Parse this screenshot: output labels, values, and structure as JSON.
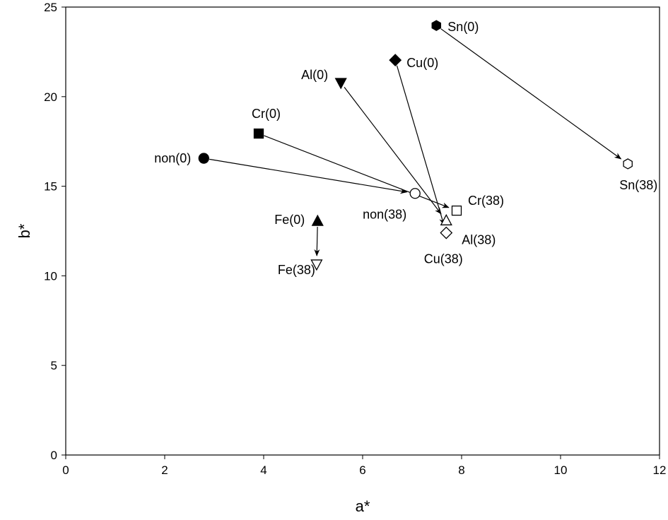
{
  "chart_data": {
    "type": "scatter",
    "title": "",
    "xlabel": "a*",
    "ylabel": "b*",
    "xlim": [
      0,
      12
    ],
    "ylim": [
      0,
      25
    ],
    "xticks": [
      "0",
      "2",
      "4",
      "6",
      "8",
      "10",
      "12"
    ],
    "yticks": [
      "0",
      "5",
      "10",
      "15",
      "20",
      "25"
    ],
    "grid": false,
    "legend": "none",
    "points": [
      {
        "label": "non(0)",
        "x": 2.79,
        "y": 16.56,
        "marker": "circle",
        "filled": true
      },
      {
        "label": "Cr(0)",
        "x": 3.9,
        "y": 17.94,
        "marker": "square",
        "filled": true
      },
      {
        "label": "Al(0)",
        "x": 5.56,
        "y": 20.78,
        "marker": "triangle-down",
        "filled": true
      },
      {
        "label": "Cu(0)",
        "x": 6.66,
        "y": 22.04,
        "marker": "diamond",
        "filled": true
      },
      {
        "label": "Sn(0)",
        "x": 7.49,
        "y": 23.97,
        "marker": "hexagon",
        "filled": true
      },
      {
        "label": "Fe(0)",
        "x": 5.09,
        "y": 13.05,
        "marker": "triangle-up",
        "filled": true
      },
      {
        "label": "non(38)",
        "x": 7.06,
        "y": 14.6,
        "marker": "circle",
        "filled": false
      },
      {
        "label": "Cr(38)",
        "x": 7.9,
        "y": 13.64,
        "marker": "square",
        "filled": false
      },
      {
        "label": "Al(38)",
        "x": 7.69,
        "y": 13.08,
        "marker": "triangle-up",
        "filled": false
      },
      {
        "label": "Cu(38)",
        "x": 7.69,
        "y": 12.4,
        "marker": "diamond",
        "filled": false
      },
      {
        "label": "Sn(38)",
        "x": 11.36,
        "y": 16.25,
        "marker": "hexagon",
        "filled": false
      },
      {
        "label": "Fe(38)",
        "x": 5.07,
        "y": 10.65,
        "marker": "triangle-down",
        "filled": false
      }
    ],
    "arrows": [
      {
        "from": "non(0)",
        "to": "non(38)"
      },
      {
        "from": "Cr(0)",
        "to": "Cr(38)"
      },
      {
        "from": "Al(0)",
        "to": "Al(38)"
      },
      {
        "from": "Cu(0)",
        "to": "Cu(38)"
      },
      {
        "from": "Sn(0)",
        "to": "Sn(38)"
      },
      {
        "from": "Fe(0)",
        "to": "Fe(38)"
      }
    ]
  }
}
